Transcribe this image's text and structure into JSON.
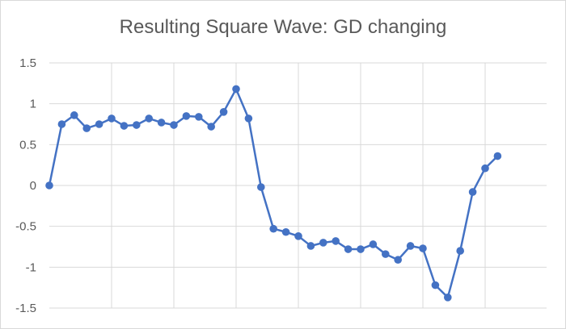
{
  "chart_data": {
    "type": "line",
    "title": "Resulting Square Wave: GD changing",
    "xlabel": "",
    "ylabel": "",
    "ylim": [
      -1.5,
      1.5
    ],
    "y_ticks": [
      "1.5",
      "1",
      "0.5",
      "0",
      "-0.5",
      "-1",
      "-1.5"
    ],
    "y_tick_values": [
      1.5,
      1,
      0.5,
      0,
      -0.5,
      -1,
      -1.5
    ],
    "grid": true,
    "legend": "none",
    "x": [
      0,
      1,
      2,
      3,
      4,
      5,
      6,
      7,
      8,
      9,
      10,
      11,
      12,
      13,
      14,
      15,
      16,
      17,
      18,
      19,
      20,
      21,
      22,
      23,
      24,
      25,
      26,
      27,
      28,
      29,
      30,
      31,
      32,
      33,
      34,
      35,
      36
    ],
    "series": [
      {
        "color": "#4472c4",
        "values": [
          0,
          0.75,
          0.86,
          0.7,
          0.75,
          0.82,
          0.73,
          0.74,
          0.82,
          0.77,
          0.74,
          0.85,
          0.84,
          0.72,
          0.9,
          1.18,
          0.82,
          -0.02,
          -0.53,
          -0.57,
          -0.62,
          -0.74,
          -0.7,
          -0.68,
          -0.78,
          -0.78,
          -0.72,
          -0.84,
          -0.91,
          -0.74,
          -0.77,
          -1.22,
          -1.37,
          -0.8,
          -0.08,
          0.21,
          0.36
        ]
      }
    ]
  }
}
